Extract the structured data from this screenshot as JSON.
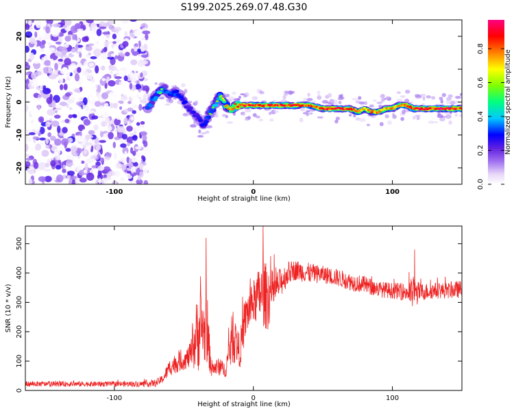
{
  "chart_data": [
    {
      "type": "heatmap",
      "title": "S199.2025.269.07.48.G30",
      "xlabel": "Height of straight line (km)",
      "ylabel": "Frequency (Hz)",
      "xlim": [
        -164,
        150
      ],
      "ylim": [
        -25,
        25
      ],
      "xticks": [
        -100,
        0,
        100
      ],
      "yticks": [
        -20,
        -10,
        0,
        10,
        20
      ],
      "colorbar": {
        "label": "Normalized spectral amplitude",
        "range": [
          0,
          0.97
        ],
        "ticks": [
          "0.0",
          "0.2",
          "0.4",
          "0.6",
          "0.8"
        ],
        "colors": [
          "#ffffff",
          "#e8d8f8",
          "#a070f0",
          "#6020e0",
          "#0000ff",
          "#00c8ff",
          "#00ff80",
          "#80ff00",
          "#ffff00",
          "#ff8000",
          "#ff0000",
          "#ff0080"
        ]
      },
      "noise_region_x": [
        -164,
        -76
      ],
      "ridge": {
        "x": [
          -76,
          -72,
          -68,
          -64,
          -60,
          -56,
          -52,
          -48,
          -44,
          -40,
          -36,
          -32,
          -28,
          -24,
          -20,
          -16,
          -12,
          -8,
          0,
          10,
          20,
          30,
          40,
          50,
          60,
          70,
          75,
          80,
          85,
          90,
          95,
          100,
          105,
          110,
          115,
          120,
          130,
          140,
          150
        ],
        "f": [
          -2,
          1,
          3,
          4,
          2,
          3,
          2,
          -1,
          -3,
          -5,
          -7,
          -4,
          -1,
          2,
          -1,
          -2,
          -1,
          -1,
          -1,
          -1,
          -1,
          -1,
          -1,
          -2,
          -2,
          -2,
          -3,
          -2,
          -3,
          -3,
          -2,
          -2,
          -1,
          -1,
          -2,
          -2,
          -2,
          -2,
          -2
        ],
        "amplitude": [
          0.45,
          0.5,
          0.55,
          0.5,
          0.45,
          0.5,
          0.45,
          0.4,
          0.35,
          0.4,
          0.45,
          0.5,
          0.55,
          0.6,
          0.75,
          0.8,
          0.85,
          0.9,
          0.9,
          0.88,
          0.9,
          0.92,
          0.85,
          0.88,
          0.92,
          0.85,
          0.8,
          0.75,
          0.82,
          0.8,
          0.75,
          0.82,
          0.78,
          0.85,
          0.88,
          0.92,
          0.9,
          0.92,
          0.88
        ]
      }
    },
    {
      "type": "line",
      "title": "",
      "xlabel": "Height of straight line (km)",
      "ylabel": "SNR (10 * v/v)",
      "xlim": [
        -164,
        150
      ],
      "ylim": [
        0,
        560
      ],
      "xticks": [
        -100,
        0,
        100
      ],
      "yticks": [
        0,
        100,
        200,
        300,
        400,
        500
      ],
      "color": "#ee2222",
      "envelope": {
        "x": [
          -164,
          -130,
          -100,
          -80,
          -70,
          -65,
          -60,
          -55,
          -50,
          -45,
          -40,
          -37,
          -35,
          -33,
          -30,
          -25,
          -20,
          -17,
          -15,
          -12,
          -10,
          -5,
          0,
          5,
          10,
          15,
          20,
          25,
          30,
          40,
          50,
          60,
          70,
          80,
          90,
          100,
          110,
          115,
          120,
          130,
          140,
          150
        ],
        "base": [
          22,
          22,
          22,
          22,
          25,
          40,
          80,
          95,
          100,
          120,
          200,
          220,
          190,
          180,
          75,
          80,
          70,
          140,
          180,
          160,
          130,
          260,
          300,
          330,
          320,
          340,
          370,
          400,
          410,
          400,
          395,
          385,
          370,
          360,
          345,
          340,
          335,
          330,
          335,
          340,
          340,
          345
        ],
        "spread": [
          18,
          18,
          18,
          20,
          25,
          30,
          60,
          70,
          60,
          90,
          280,
          260,
          200,
          200,
          60,
          60,
          50,
          150,
          180,
          140,
          120,
          150,
          150,
          200,
          240,
          120,
          100,
          80,
          70,
          70,
          60,
          60,
          60,
          60,
          55,
          55,
          60,
          120,
          60,
          55,
          55,
          60
        ]
      },
      "annotations": [
        {
          "x": -34,
          "y": 520
        },
        {
          "x": 7,
          "y": 560
        },
        {
          "x": 116,
          "y": 480
        }
      ]
    }
  ]
}
